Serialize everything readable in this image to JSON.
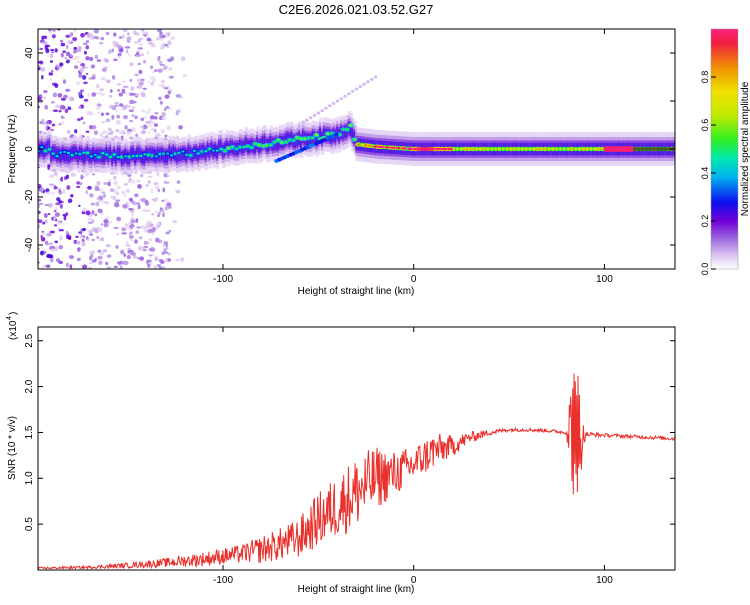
{
  "figure": {
    "title": "C2E6.2026.021.03.52.G27"
  },
  "colors": {
    "snr_line": "#e8302c",
    "axis": "#000000",
    "colormap": [
      "#ffffff",
      "#e2ccf2",
      "#a070e0",
      "#7000d8",
      "#0a10f0",
      "#00b0f0",
      "#00e8b0",
      "#30f020",
      "#c0e800",
      "#f0e000",
      "#f09000",
      "#f02040",
      "#ff2080"
    ]
  },
  "chart_data": [
    {
      "type": "heatmap",
      "title": "",
      "xlabel": "Height of straight line (km)",
      "ylabel": "Frequency (Hz)",
      "xlim": [
        -197,
        137
      ],
      "ylim": [
        -50,
        50
      ],
      "xticks": [
        -100,
        0,
        100
      ],
      "xtick_labels": [
        "-100",
        "0",
        "100"
      ],
      "yticks": [
        -40,
        -20,
        0,
        20,
        40
      ],
      "ytick_labels": [
        "-40",
        "-20",
        "0",
        "20",
        "40"
      ],
      "colorbar": {
        "label": "Normalized spectral amplitude",
        "range": [
          0,
          1
        ],
        "ticks": [
          0.0,
          0.2,
          0.4,
          0.6,
          0.8
        ],
        "tick_labels": [
          "0.0",
          "0.2",
          "0.4",
          "0.6",
          "0.8"
        ]
      },
      "ridge": {
        "description_points": [
          [
            -190,
            -2
          ],
          [
            -150,
            -3
          ],
          [
            -120,
            -2
          ],
          [
            -100,
            0
          ],
          [
            -80,
            2
          ],
          [
            -60,
            4
          ],
          [
            -40,
            6
          ],
          [
            -33,
            9
          ],
          [
            -30,
            2
          ],
          [
            -20,
            1
          ],
          [
            0,
            0
          ],
          [
            40,
            0
          ],
          [
            80,
            0
          ],
          [
            84,
            0
          ],
          [
            100,
            0
          ],
          [
            137,
            0
          ]
        ]
      }
    },
    {
      "type": "line",
      "title": "",
      "xlabel": "Height of straight line (km)",
      "ylabel": "SNR (10 * v/v)",
      "y_scale_note": "(x10",
      "y_scale_exp": "4",
      "xlim": [
        -197,
        137
      ],
      "ylim": [
        0,
        2.65
      ],
      "xticks": [
        -100,
        0,
        100
      ],
      "xtick_labels": [
        "-100",
        "0",
        "100"
      ],
      "yticks": [
        0.5,
        1.0,
        1.5,
        2.0,
        2.5
      ],
      "ytick_labels": [
        "0.5",
        "1.0",
        "1.5",
        "2.0",
        "2.5"
      ],
      "series": [
        {
          "name": "",
          "envelope_x": [
            -197,
            -170,
            -150,
            -130,
            -110,
            -90,
            -80,
            -70,
            -60,
            -50,
            -40,
            -30,
            -20,
            -10,
            0,
            10,
            20,
            30,
            40,
            50,
            60,
            70,
            80,
            84,
            86,
            88,
            90,
            100,
            110,
            120,
            130,
            137
          ],
          "envelope_y": [
            0.02,
            0.03,
            0.05,
            0.08,
            0.12,
            0.18,
            0.22,
            0.28,
            0.35,
            0.55,
            0.7,
            0.85,
            1.0,
            1.05,
            1.15,
            1.3,
            1.35,
            1.45,
            1.5,
            1.53,
            1.53,
            1.52,
            1.5,
            1.6,
            1.5,
            1.4,
            1.48,
            1.47,
            1.46,
            1.45,
            1.44,
            1.43
          ],
          "noise_y": [
            0.01,
            0.015,
            0.03,
            0.05,
            0.08,
            0.1,
            0.15,
            0.18,
            0.22,
            0.3,
            0.35,
            0.4,
            0.35,
            0.25,
            0.2,
            0.2,
            0.12,
            0.06,
            0.03,
            0.02,
            0.02,
            0.02,
            0.02,
            0.9,
            0.6,
            0.3,
            0.03,
            0.02,
            0.02,
            0.02,
            0.02,
            0.02
          ]
        }
      ]
    }
  ]
}
